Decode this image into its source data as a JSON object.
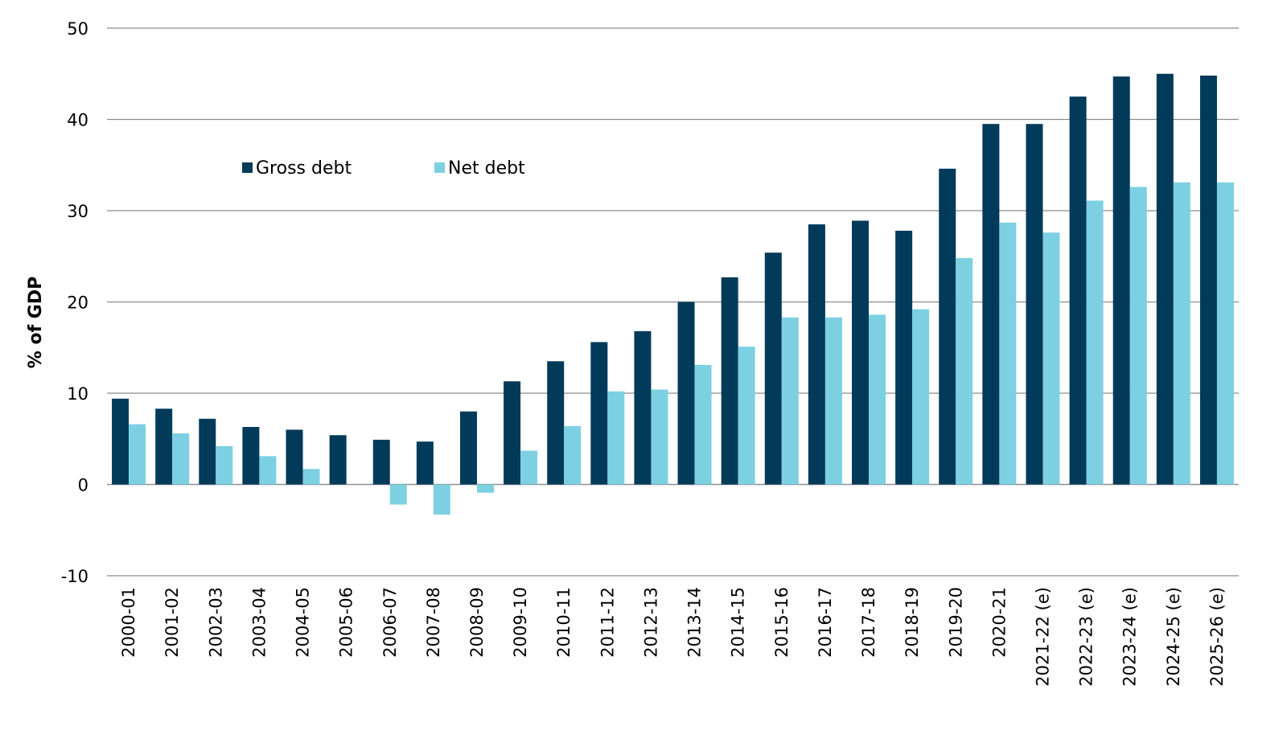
{
  "chart_data": {
    "type": "bar",
    "title": "",
    "xlabel": "",
    "ylabel": "% of GDP",
    "ylim": [
      -10,
      50
    ],
    "yticks": [
      50,
      40,
      30,
      20,
      10,
      0,
      -10
    ],
    "grid": true,
    "legend_position": "top-left",
    "categories": [
      "2000-01",
      "2001-02",
      "2002-03",
      "2003-04",
      "2004-05",
      "2005-06",
      "2006-07",
      "2007-08",
      "2008-09",
      "2009-10",
      "2010-11",
      "2011-12",
      "2012-13",
      "2013-14",
      "2014-15",
      "2015-16",
      "2016-17",
      "2017-18",
      "2018-19",
      "2019-20",
      "2020-21",
      "2021-22 (e)",
      "2022-23 (e)",
      "2023-24 (e)",
      "2024-25 (e)",
      "2025-26 (e)"
    ],
    "series": [
      {
        "name": "Gross debt",
        "color": "#023a5a",
        "values": [
          9.4,
          8.3,
          7.2,
          6.3,
          6.0,
          5.4,
          4.9,
          4.7,
          8.0,
          11.3,
          13.5,
          15.6,
          16.8,
          20.0,
          22.7,
          25.4,
          28.5,
          28.9,
          27.8,
          34.6,
          39.5,
          39.5,
          42.5,
          44.7,
          45.0,
          44.8
        ]
      },
      {
        "name": "Net debt",
        "color": "#7dd0e1",
        "values": [
          6.6,
          5.6,
          4.2,
          3.1,
          1.7,
          0.0,
          -2.2,
          -3.3,
          -0.9,
          3.7,
          6.4,
          10.2,
          10.4,
          13.1,
          15.1,
          18.3,
          18.3,
          18.6,
          19.2,
          24.8,
          28.7,
          27.6,
          31.1,
          32.6,
          33.1,
          33.1
        ]
      }
    ]
  }
}
